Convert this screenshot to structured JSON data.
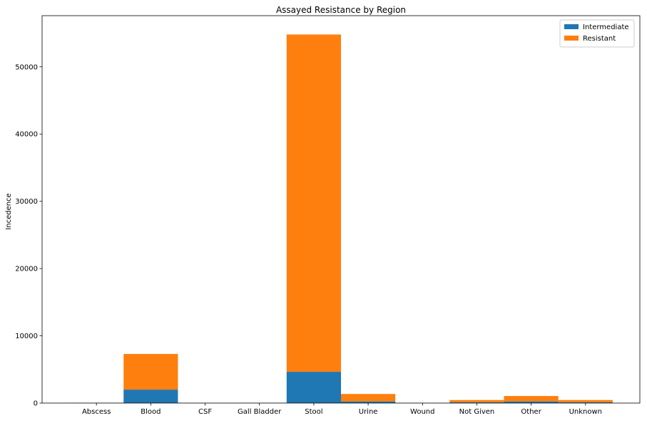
{
  "chart_data": {
    "type": "bar",
    "stacked": true,
    "title": "Assayed Resistance by Region",
    "xlabel": "",
    "ylabel": "Incedence",
    "categories": [
      "Abscess",
      "Blood",
      "CSF",
      "Gall Bladder",
      "Stool",
      "Urine",
      "Wound",
      "Not Given",
      "Other",
      "Unknown"
    ],
    "series": [
      {
        "name": "Intermediate",
        "color": "#1f77b4",
        "values": [
          10,
          2000,
          5,
          5,
          4650,
          250,
          5,
          120,
          250,
          120
        ]
      },
      {
        "name": "Resistant",
        "color": "#ff7f0e",
        "values": [
          30,
          5300,
          20,
          25,
          50150,
          1100,
          15,
          330,
          800,
          330
        ]
      }
    ],
    "ylim": [
      0,
      57600
    ],
    "yticks": [
      0,
      10000,
      20000,
      30000,
      40000,
      50000
    ],
    "grid": false,
    "legend_position": "top-right"
  }
}
